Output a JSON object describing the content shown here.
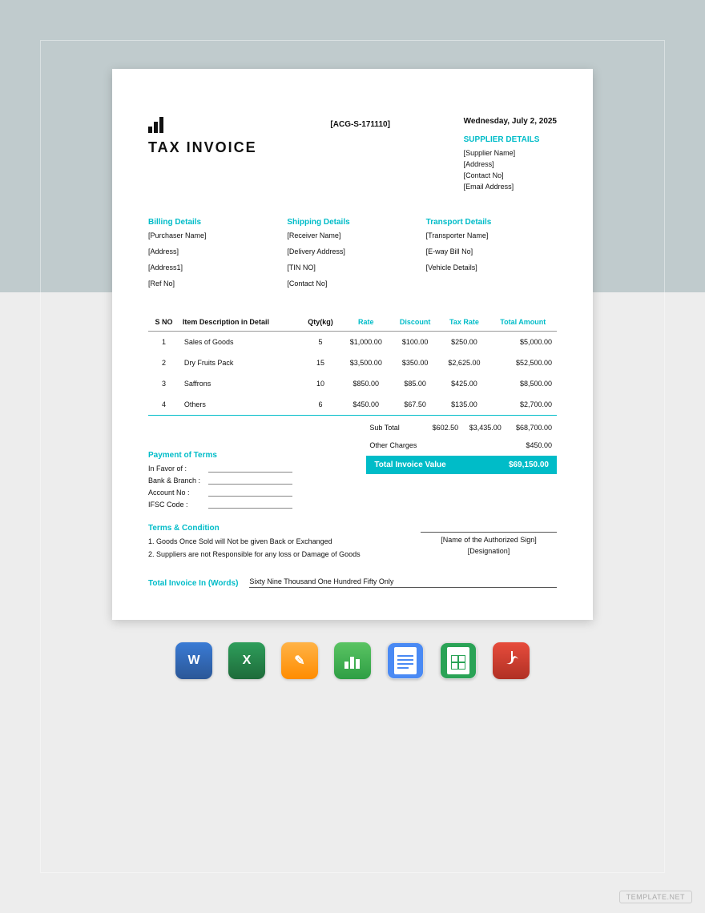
{
  "header": {
    "invoice_no": "[ACG-S-171110]",
    "date": "Wednesday, July 2, 2025",
    "title": "TAX  INVOICE"
  },
  "supplier": {
    "heading": "SUPPLIER DETAILS",
    "lines": [
      "[Supplier Name]",
      "[Address]",
      "[Contact No]",
      "[Email Address]"
    ]
  },
  "billing": {
    "heading": "Billing Details",
    "lines": [
      "[Purchaser Name]",
      "[Address]",
      "[Address1]",
      "[Ref No]"
    ]
  },
  "shipping": {
    "heading": "Shipping Details",
    "lines": [
      "[Receiver Name]",
      "[Delivery Address]",
      "[TIN NO]",
      "[Contact No]"
    ]
  },
  "transport": {
    "heading": "Transport Details",
    "lines": [
      "[Transporter Name]",
      "[E-way Bill No]",
      "[Vehicle Details]"
    ]
  },
  "table": {
    "columns": [
      "S NO",
      "Item Description in Detail",
      "Qty(kg)",
      "Rate",
      "Discount",
      "Tax Rate",
      "Total Amount"
    ],
    "accent_columns": [
      false,
      false,
      false,
      true,
      true,
      true,
      true
    ],
    "rows": [
      [
        "1",
        "Sales of Goods",
        "5",
        "$1,000.00",
        "$100.00",
        "$250.00",
        "$5,000.00"
      ],
      [
        "2",
        "Dry Fruits Pack",
        "15",
        "$3,500.00",
        "$350.00",
        "$2,625.00",
        "$52,500.00"
      ],
      [
        "3",
        "Saffrons",
        "10",
        "$850.00",
        "$85.00",
        "$425.00",
        "$8,500.00"
      ],
      [
        "4",
        "Others",
        "6",
        "$450.00",
        "$67.50",
        "$135.00",
        "$2,700.00"
      ]
    ],
    "subtotal": {
      "label": "Sub Total",
      "discount": "$602.50",
      "tax": "$3,435.00",
      "total": "$68,700.00"
    },
    "other_charges": {
      "label": "Other Charges",
      "total": "$450.00"
    },
    "total_bar": {
      "label": "Total Invoice Value",
      "value": "$69,150.00"
    }
  },
  "payment": {
    "heading": "Payment of Terms",
    "lines": [
      "In Favor of :",
      "Bank & Branch :",
      "Account No :",
      "IFSC Code :"
    ]
  },
  "terms": {
    "heading": "Terms & Condition",
    "lines": [
      "1. Goods Once Sold will Not be given Back or Exchanged",
      "2. Suppliers are not Responsible for any loss or Damage of Goods"
    ]
  },
  "signatory": {
    "name_label": "[Name of the Authorized Sign]",
    "designation_label": "[Designation]"
  },
  "words": {
    "label": "Total Invoice In (Words)",
    "value": "Sixty Nine Thousand One Hundred Fifty Only"
  },
  "apps": {
    "word": "W",
    "excel": "X",
    "pages": "✎",
    "numbers": "▮",
    "docs": "≡",
    "sheets": "▦",
    "pdf": "A"
  },
  "watermark": "TEMPLATE.NET",
  "colors": {
    "accent": "#00bcc8",
    "page_bg": "#ffffff",
    "upper_bg": "#c0cbcd",
    "lower_bg": "#ededed"
  }
}
